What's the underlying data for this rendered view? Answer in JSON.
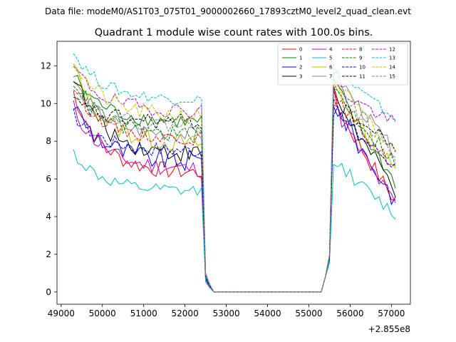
{
  "suptitle": "Data file: modeM0/AS1T03_075T01_9000002660_17893cztM0_level2_quad_clean.evt",
  "chart_data": {
    "type": "line",
    "title": "Quadrant 1 module wise count rates with 100.0s bins.",
    "xlabel": "",
    "ylabel": "",
    "x_offset_label": "+2.855e8",
    "xlim": [
      48900,
      57460
    ],
    "ylim": [
      -0.65,
      13.3
    ],
    "xticks": [
      49000,
      50000,
      51000,
      52000,
      53000,
      54000,
      55000,
      56000,
      57000
    ],
    "xtick_labels": [
      "49000",
      "50000",
      "51000",
      "52000",
      "53000",
      "54000",
      "55000",
      "56000",
      "57000"
    ],
    "yticks": [
      0,
      2,
      4,
      6,
      8,
      10,
      12
    ],
    "ytick_labels": [
      "0",
      "2",
      "4",
      "6",
      "8",
      "10",
      "12"
    ],
    "grid": false,
    "legend_position": "top-right",
    "legend_columns": 4,
    "segments": [
      {
        "x_start": 49300,
        "x_end": 52400,
        "bins": 32,
        "kind": "active"
      },
      {
        "x_start": 52500,
        "x_end": 52600,
        "bins": 2,
        "kind": "falling"
      },
      {
        "x_start": 52700,
        "x_end": 55300,
        "bins": 27,
        "kind": "zero"
      },
      {
        "x_start": 55400,
        "x_end": 55500,
        "bins": 2,
        "kind": "rising"
      },
      {
        "x_start": 55600,
        "x_end": 57100,
        "bins": 16,
        "kind": "active"
      }
    ],
    "transition_values": {
      "falling": [
        0.6,
        0.25
      ],
      "zero": 0.0,
      "rising": [
        0.8,
        0.95
      ]
    },
    "series": [
      {
        "name": "0",
        "color": "#ff0000",
        "dash": "solid",
        "start": 10.6,
        "level": 6.3,
        "restart": 10.3,
        "end": 4.8,
        "jitter": 0.45
      },
      {
        "name": "1",
        "color": "#008000",
        "dash": "solid",
        "start": 11.5,
        "level": 9.0,
        "restart": 11.2,
        "end": 5.8,
        "jitter": 0.4
      },
      {
        "name": "2",
        "color": "#0000ff",
        "dash": "solid",
        "start": 10.0,
        "level": 6.9,
        "restart": 10.2,
        "end": 4.9,
        "jitter": 0.6
      },
      {
        "name": "3",
        "color": "#000000",
        "dash": "solid",
        "start": 11.6,
        "level": 7.3,
        "restart": 10.6,
        "end": 5.4,
        "jitter": 0.5
      },
      {
        "name": "4",
        "color": "#bf00bf",
        "dash": "solid",
        "start": 9.8,
        "level": 6.5,
        "restart": 10.0,
        "end": 4.6,
        "jitter": 0.45
      },
      {
        "name": "5",
        "color": "#00bfbf",
        "dash": "solid",
        "start": 7.4,
        "level": 5.3,
        "restart": 7.1,
        "end": 4.1,
        "jitter": 0.35
      },
      {
        "name": "6",
        "color": "#bfbf00",
        "dash": "solid",
        "start": 12.0,
        "level": 7.8,
        "restart": 11.0,
        "end": 6.4,
        "jitter": 0.5
      },
      {
        "name": "7",
        "color": "#808080",
        "dash": "solid",
        "start": 11.2,
        "level": 8.3,
        "restart": 11.8,
        "end": 7.4,
        "jitter": 0.4
      },
      {
        "name": "8",
        "color": "#ff0000",
        "dash": "dashed",
        "start": 10.9,
        "level": 8.1,
        "restart": 10.5,
        "end": 6.6,
        "jitter": 0.35
      },
      {
        "name": "9",
        "color": "#008000",
        "dash": "dashed",
        "start": 11.3,
        "level": 8.3,
        "restart": 10.9,
        "end": 6.9,
        "jitter": 0.45
      },
      {
        "name": "10",
        "color": "#0000ff",
        "dash": "dashed",
        "start": 9.4,
        "level": 7.5,
        "restart": 9.7,
        "end": 6.7,
        "jitter": 0.4
      },
      {
        "name": "11",
        "color": "#000000",
        "dash": "dashed",
        "start": 10.1,
        "level": 9.0,
        "restart": 10.1,
        "end": 7.7,
        "jitter": 0.45
      },
      {
        "name": "12",
        "color": "#bf00bf",
        "dash": "dashed",
        "start": 11.9,
        "level": 9.6,
        "restart": 11.0,
        "end": 8.9,
        "jitter": 0.4
      },
      {
        "name": "13",
        "color": "#00bfbf",
        "dash": "dashed",
        "start": 12.7,
        "level": 10.2,
        "restart": 11.9,
        "end": 9.2,
        "jitter": 0.3
      },
      {
        "name": "14",
        "color": "#bfbf00",
        "dash": "dashed",
        "start": 12.3,
        "level": 9.3,
        "restart": 11.4,
        "end": 7.3,
        "jitter": 0.45
      },
      {
        "name": "15",
        "color": "#808080",
        "dash": "dashed",
        "start": 10.8,
        "level": 8.8,
        "restart": 11.3,
        "end": 7.2,
        "jitter": 0.4
      }
    ]
  }
}
